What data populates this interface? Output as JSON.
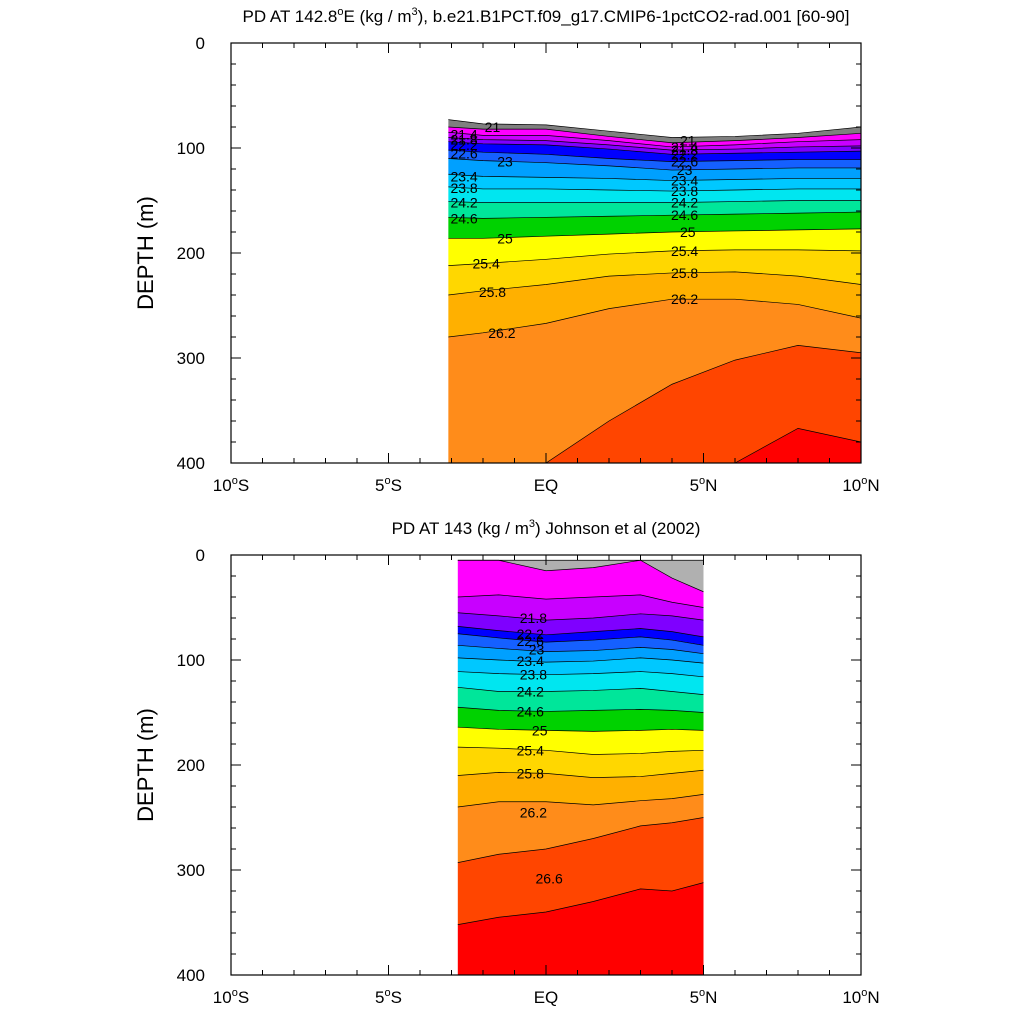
{
  "chart_data": [
    {
      "type": "contour",
      "title": "PD AT 142.8°E (kg / m³), b.e21.B1PCT.f09_g17.CMIP6-1pctCO2-rad.001 [60-90]",
      "title_parts": {
        "pre": "PD AT 142.8",
        "sup1": "o",
        "mid": "E (kg / m",
        "sup2": "3",
        "post": "), b.e21.B1PCT.f09_g17.CMIP6-1pctCO2-rad.001 [60-90]"
      },
      "ylabel": "DEPTH (m)",
      "xlabel": "",
      "xlim": [
        -10,
        10
      ],
      "ylim": [
        0,
        400
      ],
      "y_inverted": true,
      "x_ticks": [
        {
          "value": -10,
          "num": "10",
          "deg": "o",
          "hem": "S"
        },
        {
          "value": -5,
          "num": "5",
          "deg": "o",
          "hem": "S"
        },
        {
          "value": 0,
          "num": "EQ",
          "deg": "",
          "hem": ""
        },
        {
          "value": 5,
          "num": "5",
          "deg": "o",
          "hem": "N"
        },
        {
          "value": 10,
          "num": "10",
          "deg": "o",
          "hem": "N"
        }
      ],
      "y_ticks": [
        "0",
        "100",
        "200",
        "300",
        "400"
      ],
      "y_tick_values": [
        0,
        100,
        200,
        300,
        400
      ],
      "data_x_range": [
        -3.1,
        10
      ],
      "x_nodes": [
        -3.1,
        -2,
        0,
        2,
        4,
        6,
        8,
        10
      ],
      "surface_depth": [
        73,
        77,
        78,
        84,
        90,
        89,
        86,
        80
      ],
      "isopycnals": [
        {
          "value": 21.0,
          "depth": [
            80,
            82,
            82,
            89,
            95,
            93,
            90,
            86
          ]
        },
        {
          "value": 21.4,
          "depth": [
            85,
            88,
            88,
            93,
            99,
            97,
            94,
            92
          ]
        },
        {
          "value": 21.8,
          "depth": [
            90,
            92,
            93,
            97,
            102,
            101,
            99,
            98
          ]
        },
        {
          "value": 22.2,
          "depth": [
            94,
            96,
            97,
            101,
            106,
            105,
            104,
            103
          ]
        },
        {
          "value": 22.6,
          "depth": [
            102,
            104,
            106,
            110,
            113,
            112,
            111,
            111
          ]
        },
        {
          "value": 23.0,
          "depth": [
            110,
            112,
            114,
            117,
            121,
            120,
            119,
            119
          ]
        },
        {
          "value": 23.4,
          "depth": [
            125,
            127,
            128,
            129,
            131,
            130,
            129,
            129
          ]
        },
        {
          "value": 23.8,
          "depth": [
            137,
            139,
            139,
            140,
            141,
            140,
            139,
            139
          ]
        },
        {
          "value": 24.2,
          "depth": [
            151,
            152,
            152,
            152,
            152,
            151,
            150,
            150
          ]
        },
        {
          "value": 24.6,
          "depth": [
            166,
            167,
            166,
            165,
            164,
            163,
            162,
            161
          ]
        },
        {
          "value": 25.0,
          "depth": [
            186,
            186,
            184,
            182,
            180,
            179,
            178,
            177
          ]
        },
        {
          "value": 25.4,
          "depth": [
            212,
            210,
            206,
            201,
            198,
            197,
            197,
            198
          ]
        },
        {
          "value": 25.8,
          "depth": [
            240,
            236,
            230,
            222,
            219,
            218,
            222,
            230
          ]
        },
        {
          "value": 26.2,
          "depth": [
            280,
            276,
            267,
            253,
            244,
            244,
            249,
            262
          ]
        },
        {
          "value": 26.6,
          "depth": [
            400,
            400,
            400,
            360,
            325,
            302,
            288,
            295
          ]
        },
        {
          "value": 27.0,
          "depth": [
            400,
            400,
            400,
            400,
            400,
            400,
            367,
            380
          ]
        }
      ],
      "contour_labels": [
        {
          "text": "21",
          "x": -1.7,
          "depth": 80
        },
        {
          "text": "21.4",
          "x": -2.6,
          "depth": 87
        },
        {
          "text": "21.8",
          "x": -2.6,
          "depth": 92
        },
        {
          "text": "22.2",
          "x": -2.6,
          "depth": 97
        },
        {
          "text": "22.6",
          "x": -2.6,
          "depth": 105
        },
        {
          "text": "23",
          "x": -1.3,
          "depth": 113
        },
        {
          "text": "23.4",
          "x": -2.6,
          "depth": 127
        },
        {
          "text": "23.8",
          "x": -2.6,
          "depth": 138
        },
        {
          "text": "24.2",
          "x": -2.6,
          "depth": 152
        },
        {
          "text": "24.6",
          "x": -2.6,
          "depth": 167
        },
        {
          "text": "25",
          "x": -1.3,
          "depth": 186
        },
        {
          "text": "25.4",
          "x": -1.9,
          "depth": 210
        },
        {
          "text": "25.8",
          "x": -1.7,
          "depth": 237
        },
        {
          "text": "26.2",
          "x": -1.4,
          "depth": 276
        },
        {
          "text": "21",
          "x": 4.5,
          "depth": 93
        },
        {
          "text": "21.4",
          "x": 4.4,
          "depth": 99
        },
        {
          "text": "21.8",
          "x": 4.4,
          "depth": 102
        },
        {
          "text": "22.2",
          "x": 4.4,
          "depth": 106
        },
        {
          "text": "22.6",
          "x": 4.4,
          "depth": 113
        },
        {
          "text": "23",
          "x": 4.4,
          "depth": 121
        },
        {
          "text": "23.4",
          "x": 4.4,
          "depth": 131
        },
        {
          "text": "23.8",
          "x": 4.4,
          "depth": 141
        },
        {
          "text": "24.2",
          "x": 4.4,
          "depth": 152
        },
        {
          "text": "24.6",
          "x": 4.4,
          "depth": 164
        },
        {
          "text": "25",
          "x": 4.5,
          "depth": 180
        },
        {
          "text": "25.4",
          "x": 4.4,
          "depth": 198
        },
        {
          "text": "25.8",
          "x": 4.4,
          "depth": 219
        },
        {
          "text": "26.2",
          "x": 4.4,
          "depth": 244
        }
      ]
    },
    {
      "type": "contour",
      "title": "PD AT 143 (kg / m³) Johnson et al (2002)",
      "title_parts": {
        "pre": "PD AT 143 (kg / m",
        "sup1": "3",
        "mid": ") Johnson et al (2002)",
        "sup2": "",
        "post": ""
      },
      "ylabel": "DEPTH (m)",
      "xlabel": "",
      "xlim": [
        -10,
        10
      ],
      "ylim": [
        0,
        400
      ],
      "y_inverted": true,
      "x_ticks": [
        {
          "value": -10,
          "num": "10",
          "deg": "o",
          "hem": "S"
        },
        {
          "value": -5,
          "num": "5",
          "deg": "o",
          "hem": "S"
        },
        {
          "value": 0,
          "num": "EQ",
          "deg": "",
          "hem": ""
        },
        {
          "value": 5,
          "num": "5",
          "deg": "o",
          "hem": "N"
        },
        {
          "value": 10,
          "num": "10",
          "deg": "o",
          "hem": "N"
        }
      ],
      "y_ticks": [
        "0",
        "100",
        "200",
        "300",
        "400"
      ],
      "y_tick_values": [
        0,
        100,
        200,
        300,
        400
      ],
      "data_x_range": [
        -2.8,
        5
      ],
      "x_nodes": [
        -2.8,
        -1.5,
        0,
        1.5,
        3,
        4,
        5
      ],
      "surface_depth": [
        5,
        5,
        5,
        5,
        5,
        5,
        5
      ],
      "isopycnals": [
        {
          "value": 21.0,
          "depth": [
            5,
            5,
            15,
            12,
            5,
            22,
            35
          ]
        },
        {
          "value": 21.4,
          "depth": [
            40,
            38,
            42,
            40,
            38,
            45,
            50
          ]
        },
        {
          "value": 21.8,
          "depth": [
            55,
            58,
            62,
            60,
            56,
            58,
            62
          ]
        },
        {
          "value": 22.2,
          "depth": [
            68,
            72,
            76,
            73,
            70,
            73,
            78
          ]
        },
        {
          "value": 22.6,
          "depth": [
            75,
            79,
            83,
            81,
            78,
            81,
            86
          ]
        },
        {
          "value": 23.0,
          "depth": [
            86,
            89,
            92,
            91,
            88,
            90,
            94
          ]
        },
        {
          "value": 23.4,
          "depth": [
            98,
            100,
            102,
            101,
            98,
            100,
            103
          ]
        },
        {
          "value": 23.8,
          "depth": [
            111,
            113,
            114,
            113,
            111,
            113,
            116
          ]
        },
        {
          "value": 24.2,
          "depth": [
            126,
            130,
            130,
            129,
            127,
            130,
            133
          ]
        },
        {
          "value": 24.6,
          "depth": [
            145,
            148,
            149,
            148,
            147,
            148,
            150
          ]
        },
        {
          "value": 25.0,
          "depth": [
            164,
            166,
            167,
            168,
            167,
            166,
            167
          ]
        },
        {
          "value": 25.4,
          "depth": [
            183,
            184,
            186,
            190,
            189,
            187,
            186
          ]
        },
        {
          "value": 25.8,
          "depth": [
            210,
            207,
            208,
            212,
            211,
            208,
            205
          ]
        },
        {
          "value": 26.2,
          "depth": [
            240,
            235,
            235,
            238,
            234,
            232,
            228
          ]
        },
        {
          "value": 26.6,
          "depth": [
            293,
            285,
            280,
            270,
            258,
            255,
            250
          ]
        },
        {
          "value": 27.0,
          "depth": [
            352,
            345,
            340,
            330,
            318,
            320,
            312
          ]
        }
      ],
      "contour_labels": [
        {
          "text": "21.8",
          "x": -0.4,
          "depth": 60
        },
        {
          "text": "22.2",
          "x": -0.5,
          "depth": 75
        },
        {
          "text": "22.6",
          "x": -0.5,
          "depth": 82
        },
        {
          "text": "23",
          "x": -0.3,
          "depth": 90
        },
        {
          "text": "23.4",
          "x": -0.5,
          "depth": 101
        },
        {
          "text": "23.8",
          "x": -0.4,
          "depth": 114
        },
        {
          "text": "24.2",
          "x": -0.5,
          "depth": 130
        },
        {
          "text": "24.6",
          "x": -0.5,
          "depth": 149
        },
        {
          "text": "25",
          "x": -0.2,
          "depth": 167
        },
        {
          "text": "25.4",
          "x": -0.5,
          "depth": 186
        },
        {
          "text": "25.8",
          "x": -0.5,
          "depth": 208
        },
        {
          "text": "26.2",
          "x": -0.4,
          "depth": 245
        },
        {
          "text": "26.6",
          "x": 0.1,
          "depth": 308
        }
      ]
    }
  ],
  "colors": {
    "above_first": "#b0b0b0",
    "bands": [
      "#7f7f7f",
      "#ff00ff",
      "#c800ff",
      "#7f00ff",
      "#0000ff",
      "#1560ff",
      "#00a0ff",
      "#00c8ff",
      "#00e6f0",
      "#00e69a",
      "#00d200",
      "#ffff00",
      "#ffd700",
      "#ffb000",
      "#ff8c1a",
      "#ff4500",
      "#ff0000",
      "#cc0000"
    ],
    "contour_line": "#000000"
  }
}
